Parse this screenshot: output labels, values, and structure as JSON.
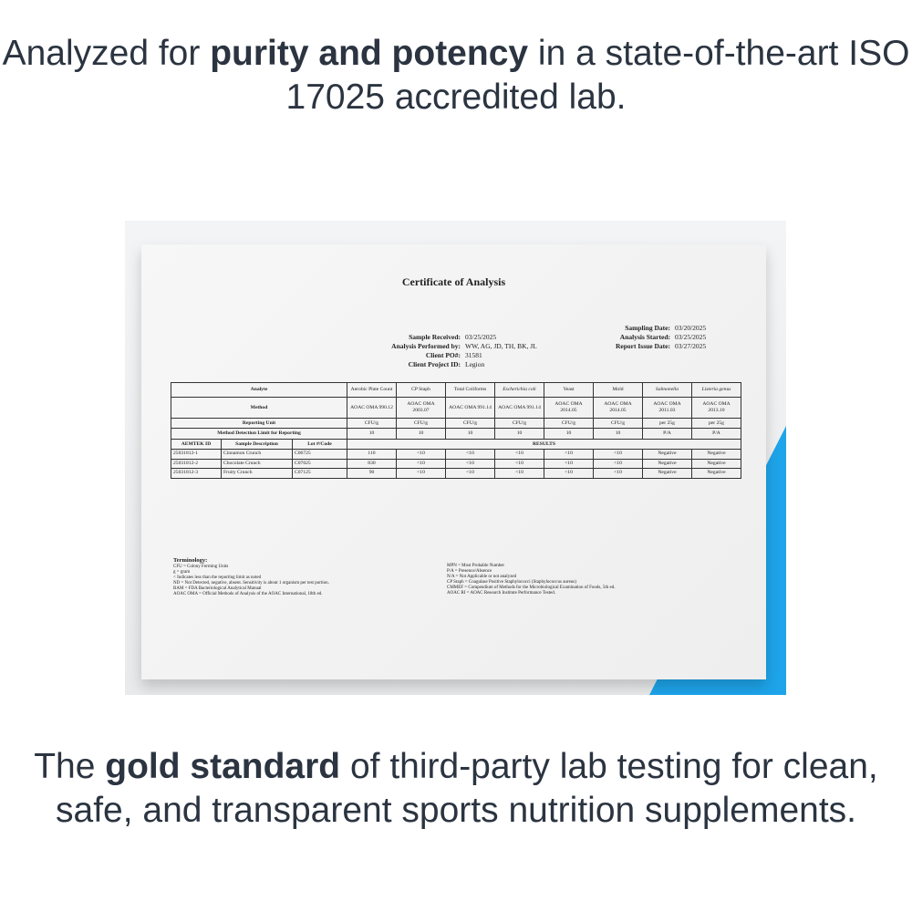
{
  "headline_top": {
    "pre": "Analyzed for ",
    "bold": "purity and potency",
    "post": " in a state-of-the-art ISO 17025 accredited lab."
  },
  "headline_bottom": {
    "pre": "The ",
    "bold": "gold standard",
    "post": " of third-party lab testing for clean, safe, and transparent sports nutrition supplements."
  },
  "colors": {
    "accent_blue": "#1ea4ea",
    "text": "#2b3440"
  },
  "certificate": {
    "title": "Certificate of Analysis",
    "meta_left": [
      {
        "k": "Sample Received:",
        "v": "03/25/2025"
      },
      {
        "k": "Analysis Performed by:",
        "v": "WW, AG, JD, TH, BK, JL"
      },
      {
        "k": "Client PO#:",
        "v": "31581"
      },
      {
        "k": "Client Project ID:",
        "v": "Legion"
      }
    ],
    "meta_right": [
      {
        "k": "Sampling Date:",
        "v": "03/20/2025"
      },
      {
        "k": "Analysis Started:",
        "v": "03/25/2025"
      },
      {
        "k": "Report Issue Date:",
        "v": "03/27/2025"
      }
    ],
    "table": {
      "analyte_label": "Analyte",
      "method_label": "Method",
      "unit_label": "Reporting Unit",
      "mdl_label": "Method Detection Limit for Reporting",
      "analytes": [
        "Aerobic Plate Count",
        "CP Staph",
        "Total Coliforms",
        "Escherichia coli",
        "Yeast",
        "Mold",
        "Salmonella",
        "Listeria genus"
      ],
      "methods": [
        "AOAC OMA 990.12",
        "AOAC OMA 2003.07",
        "AOAC OMA 991.14",
        "AOAC OMA 991.14",
        "AOAC OMA 2014.05",
        "AOAC OMA 2014.05",
        "AOAC OMA 2011.03",
        "AOAC OMA 2013.10"
      ],
      "units": [
        "CFU/g",
        "CFU/g",
        "CFU/g",
        "CFU/g",
        "CFU/g",
        "CFU/g",
        "per 25g",
        "per 25g"
      ],
      "mdl": [
        "10",
        "10",
        "10",
        "10",
        "10",
        "10",
        "P/A",
        "P/A"
      ],
      "col_headers": [
        "AEMTEK ID",
        "Sample Description",
        "Lot #/Code"
      ],
      "results_label": "RESULTS",
      "rows": [
        {
          "id": "25031812-1",
          "desc": "Cinnamon Crunch",
          "lot": "C06725",
          "vals": [
            "110",
            "<10",
            "<10",
            "<10",
            "<10",
            "<10",
            "Negative",
            "Negative"
          ]
        },
        {
          "id": "25031812-2",
          "desc": "Chocolate Crunch",
          "lot": "C07025",
          "vals": [
            "830",
            "<10",
            "<10",
            "<10",
            "<10",
            "<10",
            "Negative",
            "Negative"
          ]
        },
        {
          "id": "25031812-3",
          "desc": "Fruity Crunch",
          "lot": "C07125",
          "vals": [
            "90",
            "<10",
            "<10",
            "<10",
            "<10",
            "<10",
            "Negative",
            "Negative"
          ]
        }
      ]
    },
    "terminology_title": "Terminology:",
    "terminology_left": [
      "CFU = Colony Forming Units",
      "g = gram",
      "< Indicates less than the reporting limit as noted",
      "ND = Not Detected, negative, absent. Sensitivity is about 1 organism per test portion.",
      "BAM = FDA Bacteriological Analytical Manual",
      "AOAC OMA = Official Methods of Analysis of the AOAC International, 18th ed."
    ],
    "terminology_right": [
      "MPN = Most Probable Number",
      "P/A = Presence/Absence",
      "N/A = Not Applicable or not analyzed",
      "CP Staph = Coagulase Positive Staphylococci (Staphylococcus aureus)",
      "CMMEF = Compendium of Methods for the Microbiological Examination of Foods, 5th ed.",
      "AOAC RI = AOAC Research Institute Performance Tested."
    ]
  }
}
